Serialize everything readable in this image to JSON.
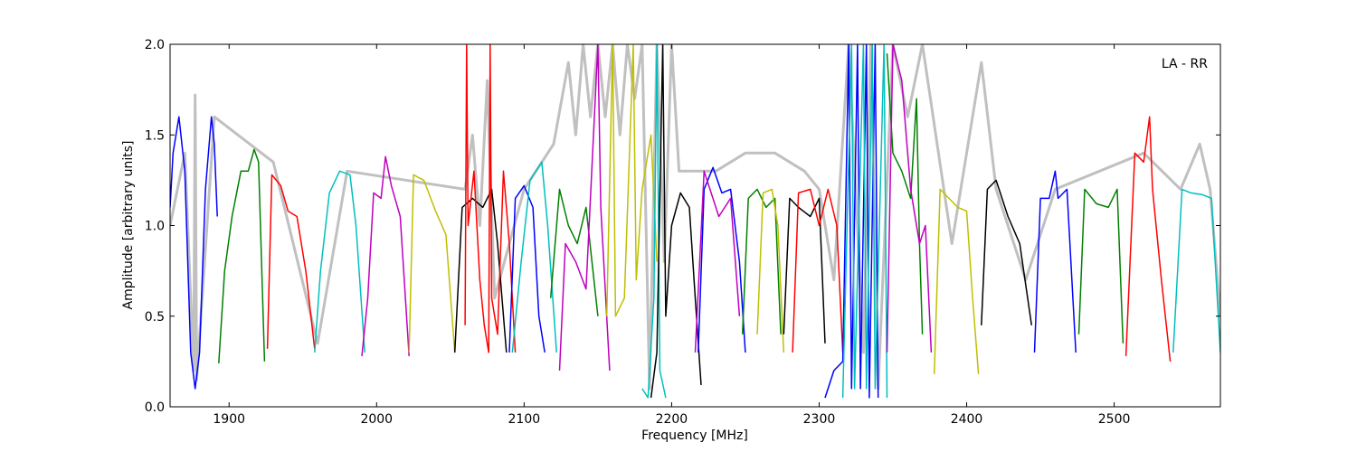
{
  "chart_data": {
    "type": "line",
    "title": "",
    "annotation": "LA - RR",
    "xlabel": "Frequency [MHz]",
    "ylabel": "Amplitude [arbitrary units]",
    "xlim": [
      1860,
      2572
    ],
    "ylim": [
      0.0,
      2.0
    ],
    "xticks": [
      1900,
      2000,
      2100,
      2200,
      2300,
      2400,
      2500
    ],
    "xtick_labels": [
      "1900",
      "2000",
      "2100",
      "2200",
      "2300",
      "2400",
      "2500"
    ],
    "yticks": [
      0.0,
      0.5,
      1.0,
      1.5,
      2.0
    ],
    "ytick_labels": [
      "0.0",
      "0.5",
      "1.0",
      "1.5",
      "2.0"
    ],
    "grid": false,
    "background": {
      "color": "#c0c0c0",
      "points": [
        [
          1860,
          1.0
        ],
        [
          1870,
          1.4
        ],
        [
          1876,
          0.2
        ],
        [
          1877,
          1.72
        ],
        [
          1878,
          0.15
        ],
        [
          1890,
          1.6
        ],
        [
          1930,
          1.35
        ],
        [
          1960,
          0.35
        ],
        [
          1980,
          1.3
        ],
        [
          2060,
          1.2
        ],
        [
          2065,
          1.5
        ],
        [
          2070,
          1.0
        ],
        [
          2075,
          1.8
        ],
        [
          2080,
          0.6
        ],
        [
          2100,
          1.2
        ],
        [
          2120,
          1.45
        ],
        [
          2130,
          1.9
        ],
        [
          2135,
          1.5
        ],
        [
          2140,
          2.0
        ],
        [
          2145,
          1.6
        ],
        [
          2150,
          2.0
        ],
        [
          2155,
          1.6
        ],
        [
          2160,
          2.0
        ],
        [
          2165,
          1.5
        ],
        [
          2170,
          2.0
        ],
        [
          2175,
          1.7
        ],
        [
          2180,
          2.0
        ],
        [
          2185,
          0.1
        ],
        [
          2190,
          2.0
        ],
        [
          2195,
          0.8
        ],
        [
          2200,
          2.0
        ],
        [
          2205,
          1.3
        ],
        [
          2230,
          1.3
        ],
        [
          2250,
          1.4
        ],
        [
          2270,
          1.4
        ],
        [
          2290,
          1.3
        ],
        [
          2300,
          1.2
        ],
        [
          2310,
          0.7
        ],
        [
          2320,
          2.0
        ],
        [
          2330,
          0.3
        ],
        [
          2335,
          2.0
        ],
        [
          2340,
          0.1
        ],
        [
          2350,
          2.0
        ],
        [
          2360,
          1.6
        ],
        [
          2370,
          2.0
        ],
        [
          2380,
          1.45
        ],
        [
          2390,
          0.9
        ],
        [
          2410,
          1.9
        ],
        [
          2420,
          1.2
        ],
        [
          2440,
          0.7
        ],
        [
          2460,
          1.2
        ],
        [
          2520,
          1.4
        ],
        [
          2545,
          1.2
        ],
        [
          2558,
          1.45
        ],
        [
          2565,
          1.2
        ],
        [
          2572,
          0.5
        ]
      ]
    },
    "series": [
      {
        "color": "#0000ff",
        "points": [
          [
            1860,
            1.1
          ],
          [
            1862,
            1.4
          ],
          [
            1866,
            1.6
          ],
          [
            1870,
            1.3
          ],
          [
            1874,
            0.3
          ],
          [
            1877,
            0.1
          ],
          [
            1880,
            0.3
          ],
          [
            1884,
            1.2
          ],
          [
            1888,
            1.6
          ],
          [
            1890,
            1.45
          ],
          [
            1892,
            1.05
          ]
        ]
      },
      {
        "color": "#008000",
        "points": [
          [
            1893,
            0.24
          ],
          [
            1897,
            0.75
          ],
          [
            1902,
            1.05
          ],
          [
            1908,
            1.3
          ],
          [
            1913,
            1.3
          ],
          [
            1917,
            1.42
          ],
          [
            1920,
            1.35
          ],
          [
            1924,
            0.25
          ]
        ]
      },
      {
        "color": "#ff0000",
        "points": [
          [
            1926,
            0.32
          ],
          [
            1929,
            1.28
          ],
          [
            1935,
            1.22
          ],
          [
            1940,
            1.08
          ],
          [
            1946,
            1.05
          ],
          [
            1952,
            0.75
          ],
          [
            1958,
            0.32
          ]
        ]
      },
      {
        "color": "#00bfbf",
        "points": [
          [
            1958,
            0.3
          ],
          [
            1962,
            0.75
          ],
          [
            1968,
            1.18
          ],
          [
            1975,
            1.3
          ],
          [
            1982,
            1.28
          ],
          [
            1986,
            1.0
          ],
          [
            1992,
            0.3
          ]
        ]
      },
      {
        "color": "#bf00bf",
        "points": [
          [
            1990,
            0.28
          ],
          [
            1994,
            0.6
          ],
          [
            1998,
            1.18
          ],
          [
            2003,
            1.15
          ],
          [
            2006,
            1.38
          ],
          [
            2010,
            1.22
          ],
          [
            2016,
            1.05
          ],
          [
            2022,
            0.28
          ]
        ]
      },
      {
        "color": "#bfbf00",
        "points": [
          [
            2022,
            0.3
          ],
          [
            2025,
            1.28
          ],
          [
            2032,
            1.25
          ],
          [
            2040,
            1.08
          ],
          [
            2047,
            0.95
          ],
          [
            2053,
            0.3
          ]
        ]
      },
      {
        "color": "#000000",
        "points": [
          [
            2053,
            0.3
          ],
          [
            2058,
            1.1
          ],
          [
            2065,
            1.15
          ],
          [
            2072,
            1.1
          ],
          [
            2078,
            1.2
          ],
          [
            2082,
            0.9
          ],
          [
            2088,
            0.3
          ]
        ]
      },
      {
        "color": "#ff0000",
        "points": [
          [
            2060,
            0.45
          ],
          [
            2061,
            2.0
          ],
          [
            2062,
            1.0
          ],
          [
            2066,
            1.3
          ],
          [
            2070,
            0.7
          ],
          [
            2073,
            0.45
          ],
          [
            2076,
            0.3
          ],
          [
            2077,
            2.0
          ],
          [
            2078,
            0.6
          ],
          [
            2082,
            0.4
          ],
          [
            2086,
            1.3
          ],
          [
            2090,
            0.9
          ],
          [
            2094,
            0.3
          ]
        ]
      },
      {
        "color": "#0000ff",
        "points": [
          [
            2090,
            0.3
          ],
          [
            2094,
            1.15
          ],
          [
            2100,
            1.22
          ],
          [
            2106,
            1.1
          ],
          [
            2110,
            0.5
          ],
          [
            2114,
            0.3
          ]
        ]
      },
      {
        "color": "#00bfbf",
        "points": [
          [
            2092,
            0.3
          ],
          [
            2098,
            0.8
          ],
          [
            2104,
            1.25
          ],
          [
            2112,
            1.35
          ],
          [
            2116,
            1.0
          ],
          [
            2122,
            0.3
          ]
        ]
      },
      {
        "color": "#008000",
        "points": [
          [
            2118,
            0.6
          ],
          [
            2124,
            1.2
          ],
          [
            2130,
            1.0
          ],
          [
            2136,
            0.9
          ],
          [
            2142,
            1.1
          ],
          [
            2150,
            0.5
          ]
        ]
      },
      {
        "color": "#bf00bf",
        "points": [
          [
            2124,
            0.2
          ],
          [
            2128,
            0.9
          ],
          [
            2135,
            0.8
          ],
          [
            2142,
            0.65
          ],
          [
            2150,
            2.0
          ],
          [
            2152,
            1.1
          ],
          [
            2158,
            0.2
          ]
        ]
      },
      {
        "color": "#bfbf00",
        "points": [
          [
            2156,
            0.5
          ],
          [
            2160,
            2.0
          ],
          [
            2162,
            0.5
          ],
          [
            2168,
            0.6
          ],
          [
            2174,
            2.0
          ],
          [
            2176,
            0.7
          ],
          [
            2180,
            1.2
          ],
          [
            2186,
            1.5
          ],
          [
            2190,
            0.8
          ]
        ]
      },
      {
        "color": "#00bfbf",
        "points": [
          [
            2180,
            0.1
          ],
          [
            2184,
            0.05
          ],
          [
            2188,
            0.6
          ],
          [
            2190,
            2.0
          ],
          [
            2192,
            0.2
          ],
          [
            2196,
            0.05
          ]
        ]
      },
      {
        "color": "#000000",
        "points": [
          [
            2186,
            0.05
          ],
          [
            2190,
            0.3
          ],
          [
            2194,
            2.0
          ],
          [
            2196,
            0.5
          ],
          [
            2200,
            1.0
          ],
          [
            2206,
            1.18
          ],
          [
            2212,
            1.1
          ],
          [
            2216,
            0.6
          ],
          [
            2220,
            0.12
          ]
        ]
      },
      {
        "color": "#0000ff",
        "points": [
          [
            2218,
            0.3
          ],
          [
            2222,
            1.2
          ],
          [
            2228,
            1.32
          ],
          [
            2234,
            1.18
          ],
          [
            2240,
            1.2
          ],
          [
            2246,
            0.8
          ],
          [
            2250,
            0.3
          ]
        ]
      },
      {
        "color": "#bf00bf",
        "points": [
          [
            2216,
            0.3
          ],
          [
            2222,
            1.3
          ],
          [
            2232,
            1.05
          ],
          [
            2240,
            1.15
          ],
          [
            2246,
            0.5
          ]
        ]
      },
      {
        "color": "#008000",
        "points": [
          [
            2248,
            0.4
          ],
          [
            2252,
            1.15
          ],
          [
            2258,
            1.2
          ],
          [
            2264,
            1.1
          ],
          [
            2270,
            1.15
          ],
          [
            2274,
            0.4
          ]
        ]
      },
      {
        "color": "#bfbf00",
        "points": [
          [
            2258,
            0.4
          ],
          [
            2262,
            1.18
          ],
          [
            2268,
            1.2
          ],
          [
            2272,
            1.0
          ],
          [
            2276,
            0.3
          ]
        ]
      },
      {
        "color": "#000000",
        "points": [
          [
            2276,
            0.4
          ],
          [
            2280,
            1.15
          ],
          [
            2286,
            1.1
          ],
          [
            2294,
            1.05
          ],
          [
            2300,
            1.15
          ],
          [
            2304,
            0.35
          ]
        ]
      },
      {
        "color": "#ff0000",
        "points": [
          [
            2282,
            0.3
          ],
          [
            2286,
            1.18
          ],
          [
            2294,
            1.2
          ],
          [
            2300,
            1.0
          ],
          [
            2306,
            1.2
          ],
          [
            2312,
            1.0
          ],
          [
            2316,
            0.3
          ]
        ]
      },
      {
        "color": "#0000ff",
        "points": [
          [
            2304,
            0.05
          ],
          [
            2310,
            0.2
          ],
          [
            2316,
            0.25
          ],
          [
            2320,
            2.0
          ],
          [
            2322,
            0.1
          ],
          [
            2326,
            2.0
          ],
          [
            2328,
            0.1
          ],
          [
            2332,
            2.0
          ],
          [
            2334,
            0.05
          ],
          [
            2338,
            2.0
          ],
          [
            2340,
            0.05
          ]
        ]
      },
      {
        "color": "#00bfbf",
        "points": [
          [
            2316,
            0.05
          ],
          [
            2322,
            2.0
          ],
          [
            2324,
            0.1
          ],
          [
            2330,
            2.0
          ],
          [
            2332,
            0.1
          ],
          [
            2336,
            2.0
          ],
          [
            2338,
            0.1
          ],
          [
            2344,
            2.0
          ],
          [
            2346,
            0.05
          ]
        ]
      },
      {
        "color": "#008000",
        "points": [
          [
            2346,
            1.95
          ],
          [
            2350,
            1.4
          ],
          [
            2356,
            1.3
          ],
          [
            2362,
            1.15
          ],
          [
            2366,
            1.7
          ],
          [
            2368,
            0.9
          ],
          [
            2370,
            0.4
          ]
        ]
      },
      {
        "color": "#bf00bf",
        "points": [
          [
            2346,
            0.3
          ],
          [
            2350,
            2.0
          ],
          [
            2356,
            1.8
          ],
          [
            2362,
            1.2
          ],
          [
            2368,
            0.9
          ],
          [
            2372,
            1.0
          ],
          [
            2376,
            0.3
          ]
        ]
      },
      {
        "color": "#bfbf00",
        "points": [
          [
            2378,
            0.18
          ],
          [
            2382,
            1.2
          ],
          [
            2388,
            1.15
          ],
          [
            2394,
            1.1
          ],
          [
            2400,
            1.08
          ],
          [
            2404,
            0.6
          ],
          [
            2408,
            0.18
          ]
        ]
      },
      {
        "color": "#000000",
        "points": [
          [
            2410,
            0.45
          ],
          [
            2414,
            1.2
          ],
          [
            2420,
            1.25
          ],
          [
            2428,
            1.05
          ],
          [
            2436,
            0.9
          ],
          [
            2444,
            0.45
          ]
        ]
      },
      {
        "color": "#0000ff",
        "points": [
          [
            2446,
            0.3
          ],
          [
            2450,
            1.15
          ],
          [
            2456,
            1.15
          ],
          [
            2460,
            1.3
          ],
          [
            2462,
            1.15
          ],
          [
            2468,
            1.2
          ],
          [
            2474,
            0.3
          ]
        ]
      },
      {
        "color": "#008000",
        "points": [
          [
            2476,
            0.4
          ],
          [
            2480,
            1.2
          ],
          [
            2488,
            1.12
          ],
          [
            2496,
            1.1
          ],
          [
            2502,
            1.2
          ],
          [
            2506,
            0.35
          ]
        ]
      },
      {
        "color": "#ff0000",
        "points": [
          [
            2508,
            0.28
          ],
          [
            2514,
            1.4
          ],
          [
            2520,
            1.35
          ],
          [
            2524,
            1.6
          ],
          [
            2526,
            1.2
          ],
          [
            2532,
            0.7
          ],
          [
            2538,
            0.25
          ]
        ]
      },
      {
        "color": "#00bfbf",
        "points": [
          [
            2540,
            0.3
          ],
          [
            2546,
            1.2
          ],
          [
            2552,
            1.18
          ],
          [
            2560,
            1.17
          ],
          [
            2566,
            1.15
          ],
          [
            2572,
            0.3
          ]
        ]
      }
    ]
  }
}
